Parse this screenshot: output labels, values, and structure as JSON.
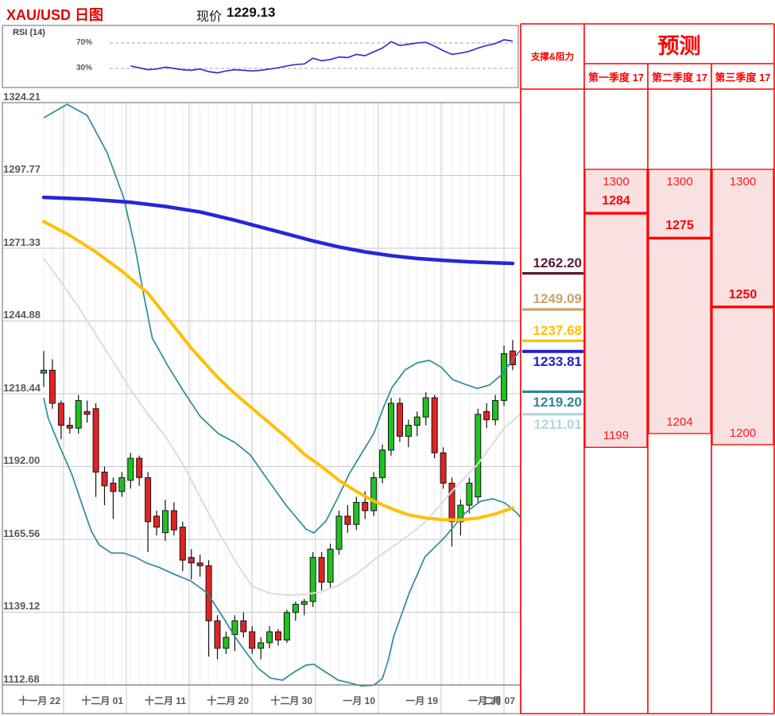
{
  "header": {
    "title": "XAU/USD 日图",
    "price_label": "现价",
    "price_value": "1229.13"
  },
  "rsi": {
    "label": "RSI (14)",
    "upper_label": "70%",
    "lower_label": "30%",
    "upper_level": 70,
    "lower_level": 30,
    "start_index": 10,
    "values": [
      34,
      31,
      28,
      29,
      32,
      30,
      28,
      27,
      29,
      25,
      23,
      26,
      28,
      27,
      26,
      27,
      29,
      31,
      34,
      36,
      37,
      46,
      42,
      44,
      48,
      47,
      52,
      50,
      56,
      62,
      72,
      66,
      68,
      70,
      71,
      65,
      58,
      52,
      54,
      57,
      62,
      66,
      69,
      75,
      73
    ]
  },
  "chart_data": {
    "type": "candlestick",
    "title": "XAU/USD 日图",
    "current_price": 1229.13,
    "y_ticks": [
      "1324.21",
      "1297.77",
      "1271.33",
      "1244.88",
      "1218.44",
      "1192.00",
      "1165.56",
      "1139.12",
      "1112.68"
    ],
    "y_range": [
      1112.68,
      1324.21
    ],
    "x_labels": [
      "十一月 22",
      "十二月 01",
      "十二月 11",
      "十二月 20",
      "十二月 30",
      "一月 10",
      "一月 19",
      "一月 29",
      "二月 07"
    ],
    "grid": true,
    "candles": [
      [
        1226,
        1234,
        1221,
        1227
      ],
      [
        1227,
        1231,
        1213,
        1215
      ],
      [
        1215,
        1216,
        1202,
        1207
      ],
      [
        1207,
        1210,
        1204,
        1206
      ],
      [
        1206,
        1218,
        1204,
        1216
      ],
      [
        1212,
        1216,
        1208,
        1211
      ],
      [
        1213,
        1215,
        1181,
        1190
      ],
      [
        1190,
        1192,
        1178,
        1185
      ],
      [
        1186,
        1188,
        1173,
        1183
      ],
      [
        1183,
        1190,
        1181,
        1188
      ],
      [
        1187,
        1197,
        1184,
        1195
      ],
      [
        1195,
        1196,
        1185,
        1188
      ],
      [
        1188,
        1190,
        1161,
        1172
      ],
      [
        1174,
        1176,
        1167,
        1170
      ],
      [
        1168,
        1180,
        1165,
        1176
      ],
      [
        1176,
        1179,
        1167,
        1169
      ],
      [
        1170,
        1172,
        1154,
        1158
      ],
      [
        1159,
        1162,
        1151,
        1157
      ],
      [
        1157,
        1160,
        1152,
        1156
      ],
      [
        1156,
        1158,
        1123,
        1136
      ],
      [
        1136,
        1138,
        1122,
        1126
      ],
      [
        1126,
        1132,
        1124,
        1130
      ],
      [
        1131,
        1138,
        1125,
        1136
      ],
      [
        1136,
        1139,
        1130,
        1132
      ],
      [
        1132,
        1134,
        1124,
        1126
      ],
      [
        1126,
        1130,
        1122,
        1128
      ],
      [
        1128,
        1134,
        1126,
        1132
      ],
      [
        1132,
        1133,
        1127,
        1129
      ],
      [
        1129,
        1140,
        1128,
        1139
      ],
      [
        1139,
        1143,
        1136,
        1142
      ],
      [
        1142,
        1144,
        1138,
        1143
      ],
      [
        1143,
        1161,
        1141,
        1159
      ],
      [
        1159,
        1161,
        1147,
        1150
      ],
      [
        1150,
        1164,
        1148,
        1162
      ],
      [
        1162,
        1176,
        1160,
        1174
      ],
      [
        1174,
        1178,
        1168,
        1171
      ],
      [
        1171,
        1181,
        1169,
        1179
      ],
      [
        1179,
        1183,
        1173,
        1176
      ],
      [
        1176,
        1190,
        1174,
        1188
      ],
      [
        1188,
        1200,
        1186,
        1198
      ],
      [
        1198,
        1217,
        1196,
        1215
      ],
      [
        1215,
        1217,
        1201,
        1203
      ],
      [
        1203,
        1209,
        1199,
        1207
      ],
      [
        1207,
        1212,
        1203,
        1210
      ],
      [
        1210,
        1219,
        1207,
        1217
      ],
      [
        1217,
        1218,
        1195,
        1197
      ],
      [
        1197,
        1199,
        1184,
        1186
      ],
      [
        1186,
        1188,
        1163,
        1172
      ],
      [
        1172,
        1180,
        1167,
        1178
      ],
      [
        1178,
        1188,
        1175,
        1186
      ],
      [
        1181,
        1213,
        1179,
        1211
      ],
      [
        1212,
        1215,
        1206,
        1209
      ],
      [
        1209,
        1218,
        1207,
        1216
      ],
      [
        1216,
        1236,
        1214,
        1233
      ],
      [
        1234,
        1238,
        1227,
        1229
      ]
    ],
    "overlays": {
      "ma_blue": [
        [
          0,
          1289.8
        ],
        [
          5,
          1289.2
        ],
        [
          10,
          1288
        ],
        [
          14,
          1286.5
        ],
        [
          18,
          1284.5
        ],
        [
          22,
          1281.5
        ],
        [
          25,
          1279
        ],
        [
          28,
          1276.5
        ],
        [
          31,
          1274
        ],
        [
          34,
          1271.8
        ],
        [
          37,
          1270
        ],
        [
          40,
          1268.6
        ],
        [
          43,
          1267.6
        ],
        [
          46,
          1266.9
        ],
        [
          49,
          1266.4
        ],
        [
          52,
          1266.0
        ],
        [
          54,
          1265.8
        ]
      ],
      "ma_yellow": [
        [
          0,
          1281
        ],
        [
          3,
          1276
        ],
        [
          6,
          1270
        ],
        [
          9,
          1263
        ],
        [
          12,
          1255
        ],
        [
          15,
          1243
        ],
        [
          17,
          1235
        ],
        [
          20,
          1224.5
        ],
        [
          22,
          1218.5
        ],
        [
          25,
          1210.5
        ],
        [
          28,
          1202.5
        ],
        [
          30,
          1196.5
        ],
        [
          32,
          1192
        ],
        [
          34,
          1187
        ],
        [
          36,
          1183
        ],
        [
          38,
          1179.5
        ],
        [
          40,
          1176.8
        ],
        [
          42,
          1174.5
        ],
        [
          44,
          1173.3
        ],
        [
          46,
          1172.7
        ],
        [
          48,
          1172.6
        ],
        [
          50,
          1173.3
        ],
        [
          52,
          1174.8
        ],
        [
          54,
          1177
        ]
      ],
      "ma_gray": [
        [
          0,
          1267.5
        ],
        [
          2,
          1259
        ],
        [
          4,
          1250
        ],
        [
          6,
          1240
        ],
        [
          8,
          1230
        ],
        [
          10,
          1220
        ],
        [
          12,
          1211
        ],
        [
          14,
          1203
        ],
        [
          16,
          1193
        ],
        [
          18,
          1181
        ],
        [
          20,
          1169
        ],
        [
          22,
          1158
        ],
        [
          24,
          1148.5
        ],
        [
          26,
          1146
        ],
        [
          28,
          1145.3
        ],
        [
          30,
          1145.6
        ],
        [
          32,
          1146.5
        ],
        [
          34,
          1149
        ],
        [
          36,
          1153
        ],
        [
          38,
          1158
        ],
        [
          40,
          1162.5
        ],
        [
          42,
          1167
        ],
        [
          44,
          1172
        ],
        [
          47,
          1183
        ],
        [
          50,
          1193
        ],
        [
          53,
          1206
        ],
        [
          54.9,
          1211
        ]
      ],
      "band_upper": [
        [
          0,
          1318.7
        ],
        [
          2.7,
          1323.6
        ],
        [
          5,
          1319.6
        ],
        [
          7.3,
          1306
        ],
        [
          9.2,
          1289.8
        ],
        [
          10.5,
          1271.9
        ],
        [
          11.6,
          1253.1
        ],
        [
          12.5,
          1238.7
        ],
        [
          14.2,
          1229.1
        ],
        [
          16,
          1219.9
        ],
        [
          18,
          1210.3
        ],
        [
          20.1,
          1204
        ],
        [
          22,
          1200.8
        ],
        [
          23.8,
          1196.2
        ],
        [
          25.6,
          1188.1
        ],
        [
          27.9,
          1178
        ],
        [
          30.2,
          1169.3
        ],
        [
          31.1,
          1167.9
        ],
        [
          32.5,
          1172.2
        ],
        [
          33.9,
          1180.9
        ],
        [
          35.2,
          1189.5
        ],
        [
          36.6,
          1196.8
        ],
        [
          38,
          1204
        ],
        [
          39.2,
          1214.1
        ],
        [
          40.1,
          1220.7
        ],
        [
          41.6,
          1227.1
        ],
        [
          43,
          1229.7
        ],
        [
          44.4,
          1230.6
        ],
        [
          45.8,
          1228
        ],
        [
          47.1,
          1223.6
        ],
        [
          48.5,
          1221.9
        ],
        [
          49.9,
          1220.4
        ],
        [
          51.3,
          1221.6
        ],
        [
          52.6,
          1225
        ],
        [
          54,
          1230.8
        ],
        [
          54.9,
          1234.3
        ]
      ],
      "band_lower": [
        [
          0,
          1217
        ],
        [
          0.5,
          1209.7
        ],
        [
          1.8,
          1199.6
        ],
        [
          3.2,
          1189.5
        ],
        [
          4.6,
          1176.5
        ],
        [
          5.5,
          1168.4
        ],
        [
          6.4,
          1163.5
        ],
        [
          7.8,
          1160.6
        ],
        [
          9.2,
          1160.6
        ],
        [
          10.5,
          1159.2
        ],
        [
          11.9,
          1156.9
        ],
        [
          13.3,
          1155.4
        ],
        [
          15.1,
          1152.8
        ],
        [
          16.9,
          1150.5
        ],
        [
          18.8,
          1146.2
        ],
        [
          20.6,
          1137.5
        ],
        [
          22,
          1130.3
        ],
        [
          23.3,
          1124.5
        ],
        [
          24.7,
          1118.7
        ],
        [
          26.1,
          1115.2
        ],
        [
          27.5,
          1114.4
        ],
        [
          28.8,
          1117.3
        ],
        [
          30.2,
          1119.9
        ],
        [
          31.1,
          1120.2
        ],
        [
          32.5,
          1117.3
        ],
        [
          33.9,
          1114.4
        ],
        [
          35.2,
          1113.5
        ],
        [
          36.6,
          1112.3
        ],
        [
          38,
          1112.6
        ],
        [
          39,
          1115
        ],
        [
          39.7,
          1122
        ],
        [
          40.3,
          1130.3
        ],
        [
          42.1,
          1146.2
        ],
        [
          43.9,
          1159.2
        ],
        [
          46.2,
          1166.4
        ],
        [
          48.5,
          1175.1
        ],
        [
          50.3,
          1179.4
        ],
        [
          51.7,
          1180.3
        ],
        [
          53.1,
          1178.8
        ],
        [
          54.5,
          1175.1
        ],
        [
          54.9,
          1173.6
        ]
      ]
    }
  },
  "support_resistance": {
    "header": "支撑&阻力",
    "levels": [
      {
        "value": "1262.20",
        "price": 1262.2,
        "color": "#5C1A38",
        "text_side": "above"
      },
      {
        "value": "1249.09",
        "price": 1249.09,
        "color": "#C9A469",
        "text_side": "above"
      },
      {
        "value": "1237.68",
        "price": 1237.68,
        "color": "#FFC000",
        "text_side": "above"
      },
      {
        "value": "1233.81",
        "price": 1233.81,
        "color": "#2121CC",
        "text_side": "below"
      },
      {
        "value": "1219.20",
        "price": 1219.2,
        "color": "#31859C",
        "text_side": "below"
      },
      {
        "value": "1211.01",
        "price": 1211.01,
        "color": "#AFD6DE",
        "text_side": "below"
      }
    ]
  },
  "forecast": {
    "title": "预测",
    "columns": [
      {
        "label": "第一季度 17",
        "high": "1300",
        "mid": "1284",
        "low": "1199",
        "high_price": 1300,
        "mid_price": 1284,
        "low_price": 1199
      },
      {
        "label": "第二季度 17",
        "high": "1300",
        "mid": "1275",
        "low": "1204",
        "high_price": 1300,
        "mid_price": 1275,
        "low_price": 1204
      },
      {
        "label": "第三季度 17",
        "high": "1300",
        "mid": "1250",
        "low": "1200",
        "high_price": 1300,
        "mid_price": 1250,
        "low_price": 1200
      }
    ]
  },
  "colors": {
    "title_red": "#e50000",
    "table_red": "#ff0000",
    "forecast_fill": "#fae1e1",
    "candle_up": "#22C122",
    "candle_down": "#E02424",
    "candle_border": "#141414",
    "ma_blue": "#2626D9",
    "ma_yellow": "#FFC000",
    "ma_gray": "#DCDCDC",
    "band_teal": "#2E8B99",
    "rsi_line": "#3333CC",
    "grid": "#C9C9C9",
    "panel_border": "#808080",
    "axis_text": "#595959"
  }
}
